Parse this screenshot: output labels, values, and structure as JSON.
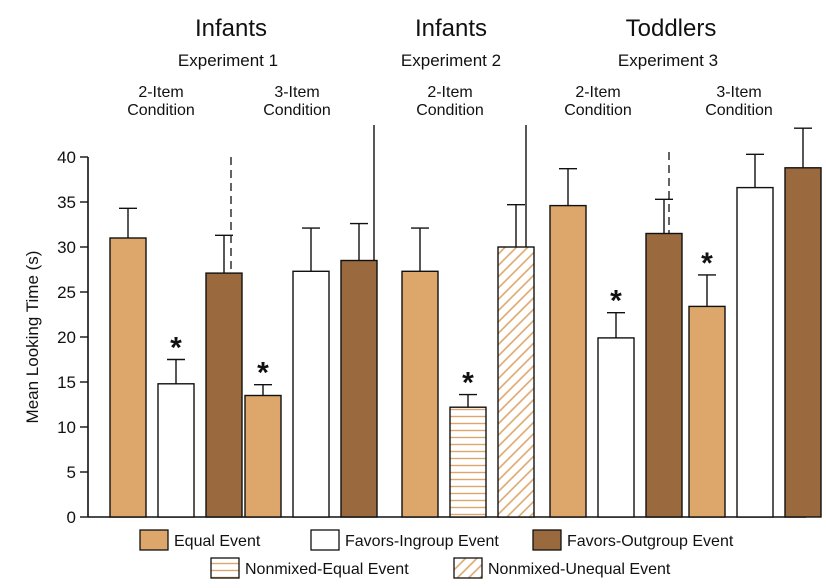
{
  "chart_data": {
    "type": "bar",
    "ylabel": "Mean Looking Time (s)",
    "ylim": [
      0,
      40
    ],
    "yticks": [
      0,
      5,
      10,
      15,
      20,
      25,
      30,
      35,
      40
    ],
    "grid": false,
    "legend_placement": "bottom",
    "panels": [
      {
        "title": "Infants",
        "subtitle": "Experiment 1",
        "groups": [
          {
            "condition": [
              "2-Item",
              "Condition"
            ],
            "bars": [
              {
                "series": "equal",
                "value": 31.0,
                "error": 3.3,
                "significant": false
              },
              {
                "series": "ingroup",
                "value": 14.8,
                "error": 2.7,
                "significant": true
              },
              {
                "series": "outgroup",
                "value": 27.1,
                "error": 4.2,
                "significant": false
              }
            ]
          },
          {
            "condition": [
              "3-Item",
              "Condition"
            ],
            "bars": [
              {
                "series": "equal",
                "value": 13.5,
                "error": 1.2,
                "significant": true
              },
              {
                "series": "ingroup",
                "value": 27.3,
                "error": 4.8,
                "significant": false
              },
              {
                "series": "outgroup",
                "value": 28.5,
                "error": 4.1,
                "significant": false
              }
            ]
          }
        ]
      },
      {
        "title": "Infants",
        "subtitle": "Experiment 2",
        "groups": [
          {
            "condition": [
              "2-Item",
              "Condition"
            ],
            "bars": [
              {
                "series": "equal",
                "value": 27.3,
                "error": 4.8,
                "significant": false
              },
              {
                "series": "nonmixed_equal",
                "value": 12.2,
                "error": 1.4,
                "significant": true
              },
              {
                "series": "nonmixed_unequal",
                "value": 30.0,
                "error": 4.7,
                "significant": false
              }
            ]
          }
        ]
      },
      {
        "title": "Toddlers",
        "subtitle": "Experiment 3",
        "groups": [
          {
            "condition": [
              "2-Item",
              "Condition"
            ],
            "bars": [
              {
                "series": "equal",
                "value": 34.6,
                "error": 4.1,
                "significant": false
              },
              {
                "series": "ingroup",
                "value": 19.9,
                "error": 2.8,
                "significant": true
              },
              {
                "series": "outgroup",
                "value": 31.5,
                "error": 3.8,
                "significant": false
              }
            ]
          },
          {
            "condition": [
              "3-Item",
              "Condition"
            ],
            "bars": [
              {
                "series": "equal",
                "value": 23.4,
                "error": 3.5,
                "significant": true
              },
              {
                "series": "ingroup",
                "value": 36.6,
                "error": 3.7,
                "significant": false
              },
              {
                "series": "outgroup",
                "value": 38.8,
                "error": 4.4,
                "significant": false
              }
            ]
          }
        ]
      }
    ],
    "series": [
      {
        "key": "equal",
        "name": "Equal Event",
        "color": "#DDA66B",
        "pattern": "solid"
      },
      {
        "key": "ingroup",
        "name": "Favors-Ingroup Event",
        "color": "#FFFFFF",
        "pattern": "solid"
      },
      {
        "key": "outgroup",
        "name": "Favors-Outgroup Event",
        "color": "#9A6A3E",
        "pattern": "solid"
      },
      {
        "key": "nonmixed_equal",
        "name": "Nonmixed-Equal Event",
        "color": "#DDA66B",
        "pattern": "horizontal-lines"
      },
      {
        "key": "nonmixed_unequal",
        "name": "Nonmixed-Unequal Event",
        "color": "#DDA66B",
        "pattern": "diagonal-lines"
      }
    ],
    "significance_marker": "*"
  }
}
